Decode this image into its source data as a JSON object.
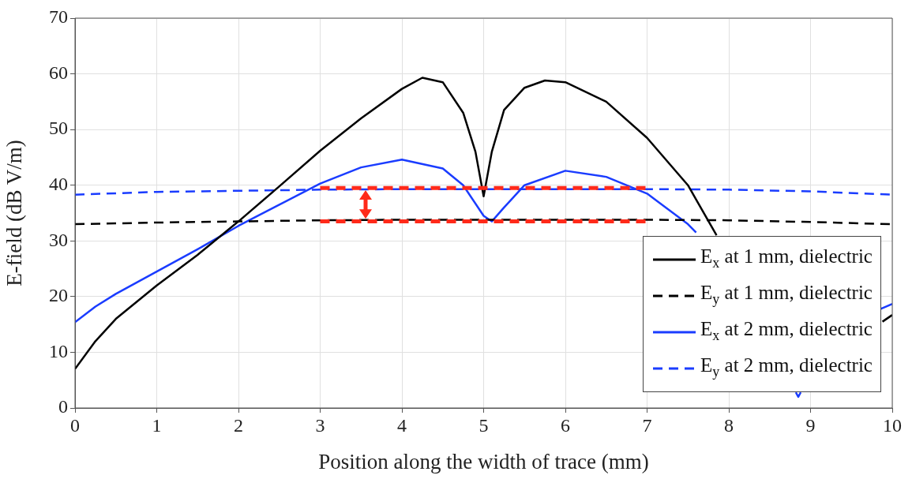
{
  "chart_data": {
    "type": "line",
    "xlabel": "Position along the width of trace (mm)",
    "ylabel": "E-field (dB V/m)",
    "xlim": [
      0,
      10
    ],
    "xticks": [
      0,
      1,
      2,
      3,
      4,
      5,
      6,
      7,
      8,
      9,
      10
    ],
    "ylim": [
      0,
      70
    ],
    "yticks": [
      0,
      10,
      20,
      30,
      40,
      50,
      60,
      70
    ],
    "grid": true,
    "legend": "bottom right",
    "marker": "none",
    "series": [
      {
        "name": "E$_{x}$ at 1 mm, dielectric",
        "color": "#000000",
        "line_style": "solid",
        "x": [
          0,
          0.25,
          0.5,
          1,
          1.5,
          2,
          2.5,
          3,
          3.5,
          4,
          4.25,
          4.5,
          4.75,
          4.9,
          5,
          5.1,
          5.25,
          5.5,
          5.75,
          6,
          6.5,
          7,
          7.5,
          7.85,
          8,
          9.85,
          9.88,
          10
        ],
        "values": [
          7,
          12,
          16,
          22,
          27.5,
          33.5,
          39.8,
          46.2,
          52,
          57.3,
          59.3,
          58.5,
          53,
          46,
          38,
          46,
          53.5,
          57.5,
          58.8,
          58.5,
          55,
          48.5,
          40,
          31,
          null,
          null,
          15.5,
          16.7
        ]
      },
      {
        "name": "E$_{y}$ at 1 mm, dielectric",
        "color": "#000000",
        "line_style": "dashed",
        "x": [
          0,
          1,
          2,
          3,
          4,
          5,
          6,
          7,
          8,
          9,
          10
        ],
        "values": [
          33,
          33.3,
          33.5,
          33.7,
          33.8,
          33.8,
          33.8,
          33.8,
          33.7,
          33.4,
          33
        ]
      },
      {
        "name": "E$_{x}$ at 2 mm, dielectric",
        "color": "#1a3cff",
        "line_style": "solid",
        "x": [
          0,
          0.25,
          0.5,
          1,
          1.5,
          2,
          2.5,
          3,
          3.5,
          4,
          4.5,
          4.75,
          5,
          5.1,
          5.25,
          5.5,
          6,
          6.5,
          7,
          7.5,
          7.6,
          8,
          8.82,
          8.85,
          8.88,
          9,
          9.86,
          10
        ],
        "values": [
          15.4,
          18.2,
          20.5,
          24.5,
          28.5,
          32.7,
          36.5,
          40.3,
          43.2,
          44.6,
          43,
          40,
          34.5,
          33.5,
          36,
          40,
          42.6,
          41.5,
          38.5,
          33,
          31.5,
          null,
          2.8,
          2,
          2.8,
          null,
          17.8,
          18.7
        ]
      },
      {
        "name": "E$_{y}$ at 2 mm, dielectric",
        "color": "#1a3cff",
        "line_style": "dashed",
        "x": [
          0,
          1,
          2,
          3,
          4,
          5,
          6,
          7,
          8,
          9,
          10
        ],
        "values": [
          38.3,
          38.8,
          39,
          39.2,
          39.3,
          39.3,
          39.3,
          39.3,
          39.2,
          38.9,
          38.3
        ]
      },
      {
        "type": "line",
        "color": "#ff2a1a",
        "line_style": "dashed",
        "x": [
          3,
          7
        ],
        "values": [
          39.5,
          39.5
        ]
      },
      {
        "type": "line",
        "color": "#ff2a1a",
        "line_style": "dashed",
        "x": [
          3,
          7
        ],
        "values": [
          33.5,
          33.5
        ]
      }
    ]
  }
}
